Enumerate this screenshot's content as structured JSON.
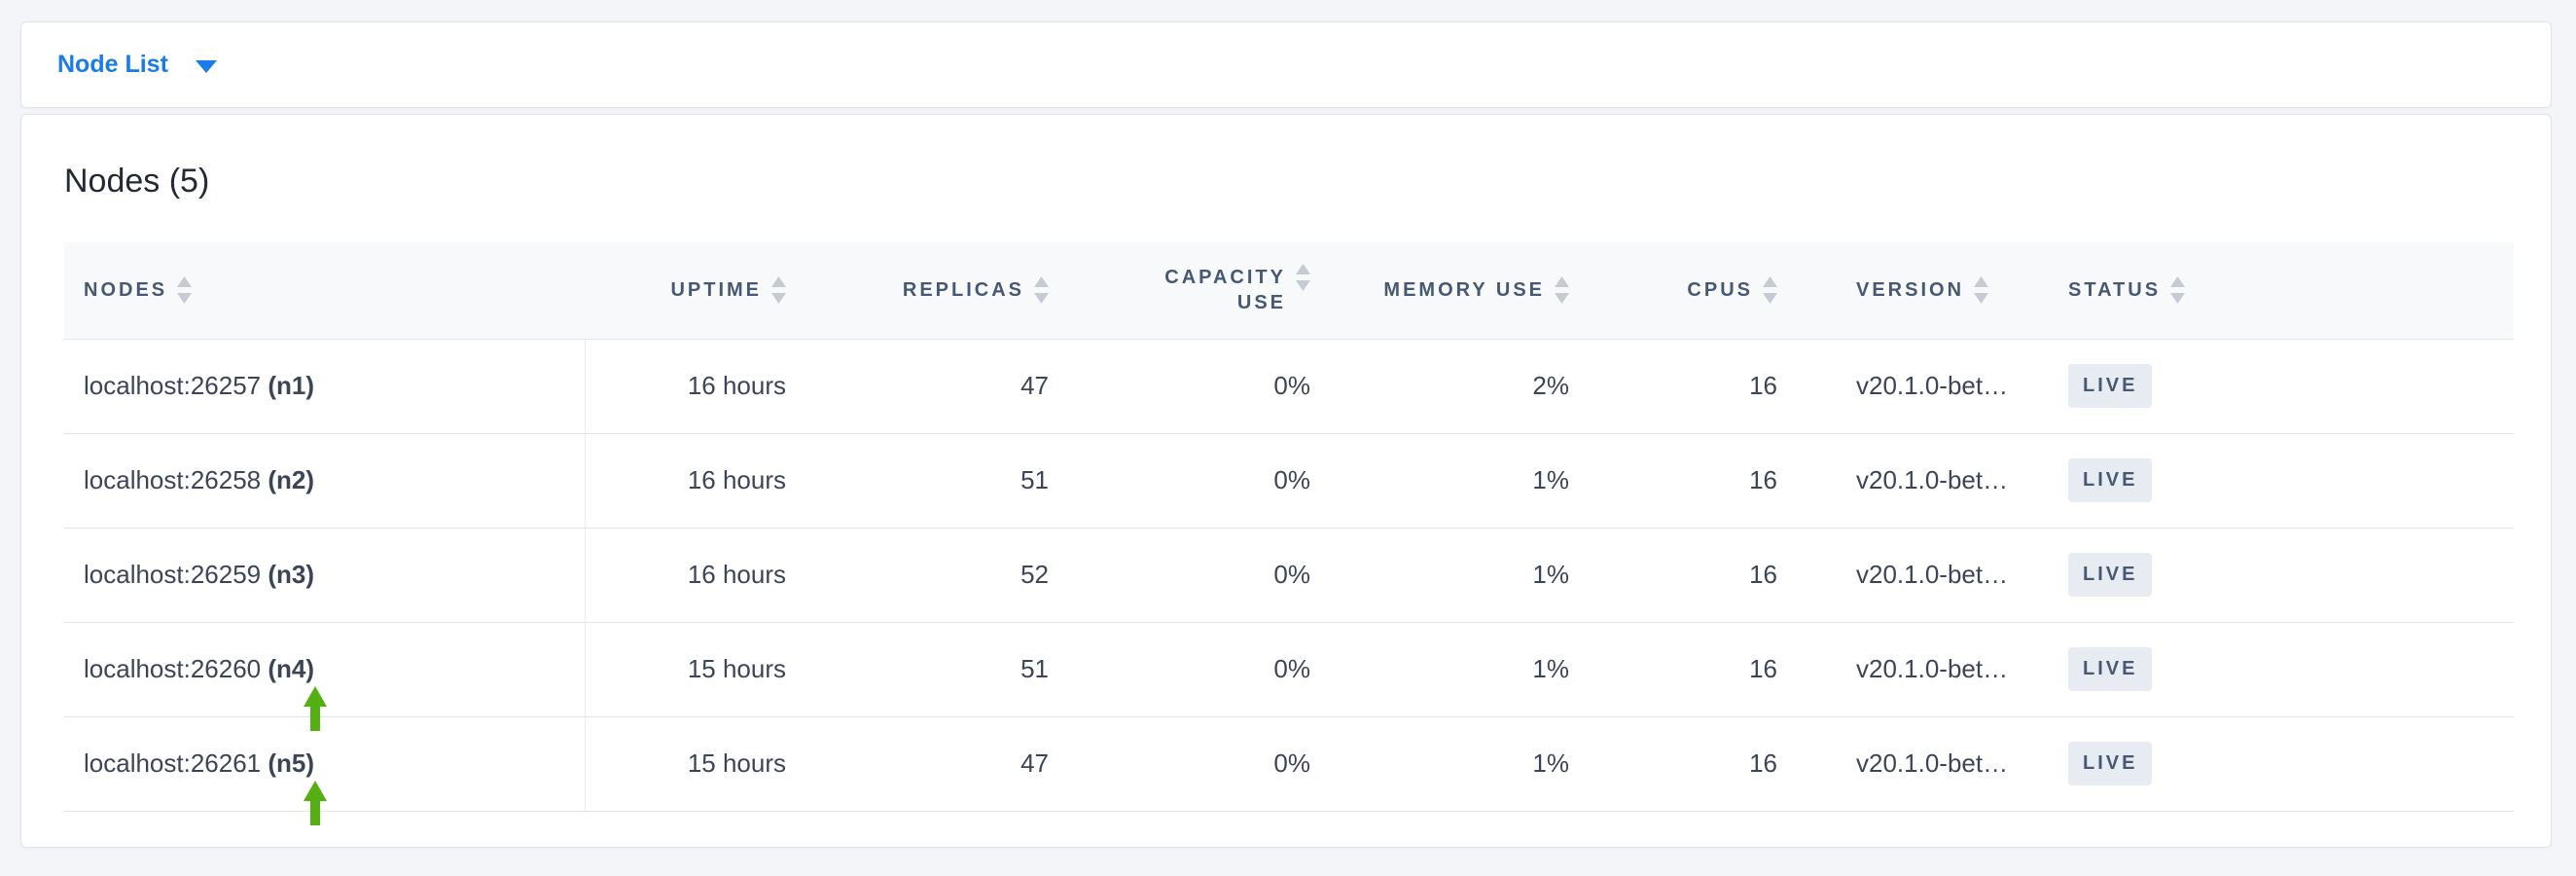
{
  "topbar": {
    "selector_label": "Node List"
  },
  "main": {
    "heading": "Nodes (5)",
    "table": {
      "columns": [
        {
          "key": "nodes",
          "label": "NODES"
        },
        {
          "key": "uptime",
          "label": "UPTIME"
        },
        {
          "key": "replicas",
          "label": "REPLICAS"
        },
        {
          "key": "capacity",
          "label": "CAPACITY USE"
        },
        {
          "key": "memory",
          "label": "MEMORY USE"
        },
        {
          "key": "cpus",
          "label": "CPUS"
        },
        {
          "key": "version",
          "label": "VERSION"
        },
        {
          "key": "status",
          "label": "STATUS"
        }
      ],
      "rows": [
        {
          "address": "localhost:26257",
          "node_id": "(n1)",
          "uptime": "16 hours",
          "replicas": "47",
          "capacity_use": "0%",
          "memory_use": "2%",
          "cpus": "16",
          "version": "v20.1.0-bet…",
          "status": "LIVE"
        },
        {
          "address": "localhost:26258",
          "node_id": "(n2)",
          "uptime": "16 hours",
          "replicas": "51",
          "capacity_use": "0%",
          "memory_use": "1%",
          "cpus": "16",
          "version": "v20.1.0-bet…",
          "status": "LIVE"
        },
        {
          "address": "localhost:26259",
          "node_id": "(n3)",
          "uptime": "16 hours",
          "replicas": "52",
          "capacity_use": "0%",
          "memory_use": "1%",
          "cpus": "16",
          "version": "v20.1.0-bet…",
          "status": "LIVE"
        },
        {
          "address": "localhost:26260",
          "node_id": "(n4)",
          "uptime": "15 hours",
          "replicas": "51",
          "capacity_use": "0%",
          "memory_use": "1%",
          "cpus": "16",
          "version": "v20.1.0-bet…",
          "status": "LIVE"
        },
        {
          "address": "localhost:26261",
          "node_id": "(n5)",
          "uptime": "15 hours",
          "replicas": "47",
          "capacity_use": "0%",
          "memory_use": "1%",
          "cpus": "16",
          "version": "v20.1.0-bet…",
          "status": "LIVE"
        }
      ]
    }
  },
  "annotations": {
    "green_arrow_row_indexes": [
      3,
      4
    ],
    "icon": "green-up-arrow"
  },
  "colors": {
    "page_bg": "#f4f5f9",
    "accent_blue": "#1a7ce8",
    "heading_text": "#242a35",
    "header_text": "#475872",
    "cell_text": "#3b4558",
    "badge_bg": "#e7ebf2",
    "badge_text": "#475872",
    "arrow_green": "#54b012",
    "card_border": "#e0e3ea",
    "row_border": "#e0e4ed",
    "header_bg": "#f8f9fa",
    "column_divider": "#e9ecf1",
    "sort_icon": "#c6cad2"
  }
}
